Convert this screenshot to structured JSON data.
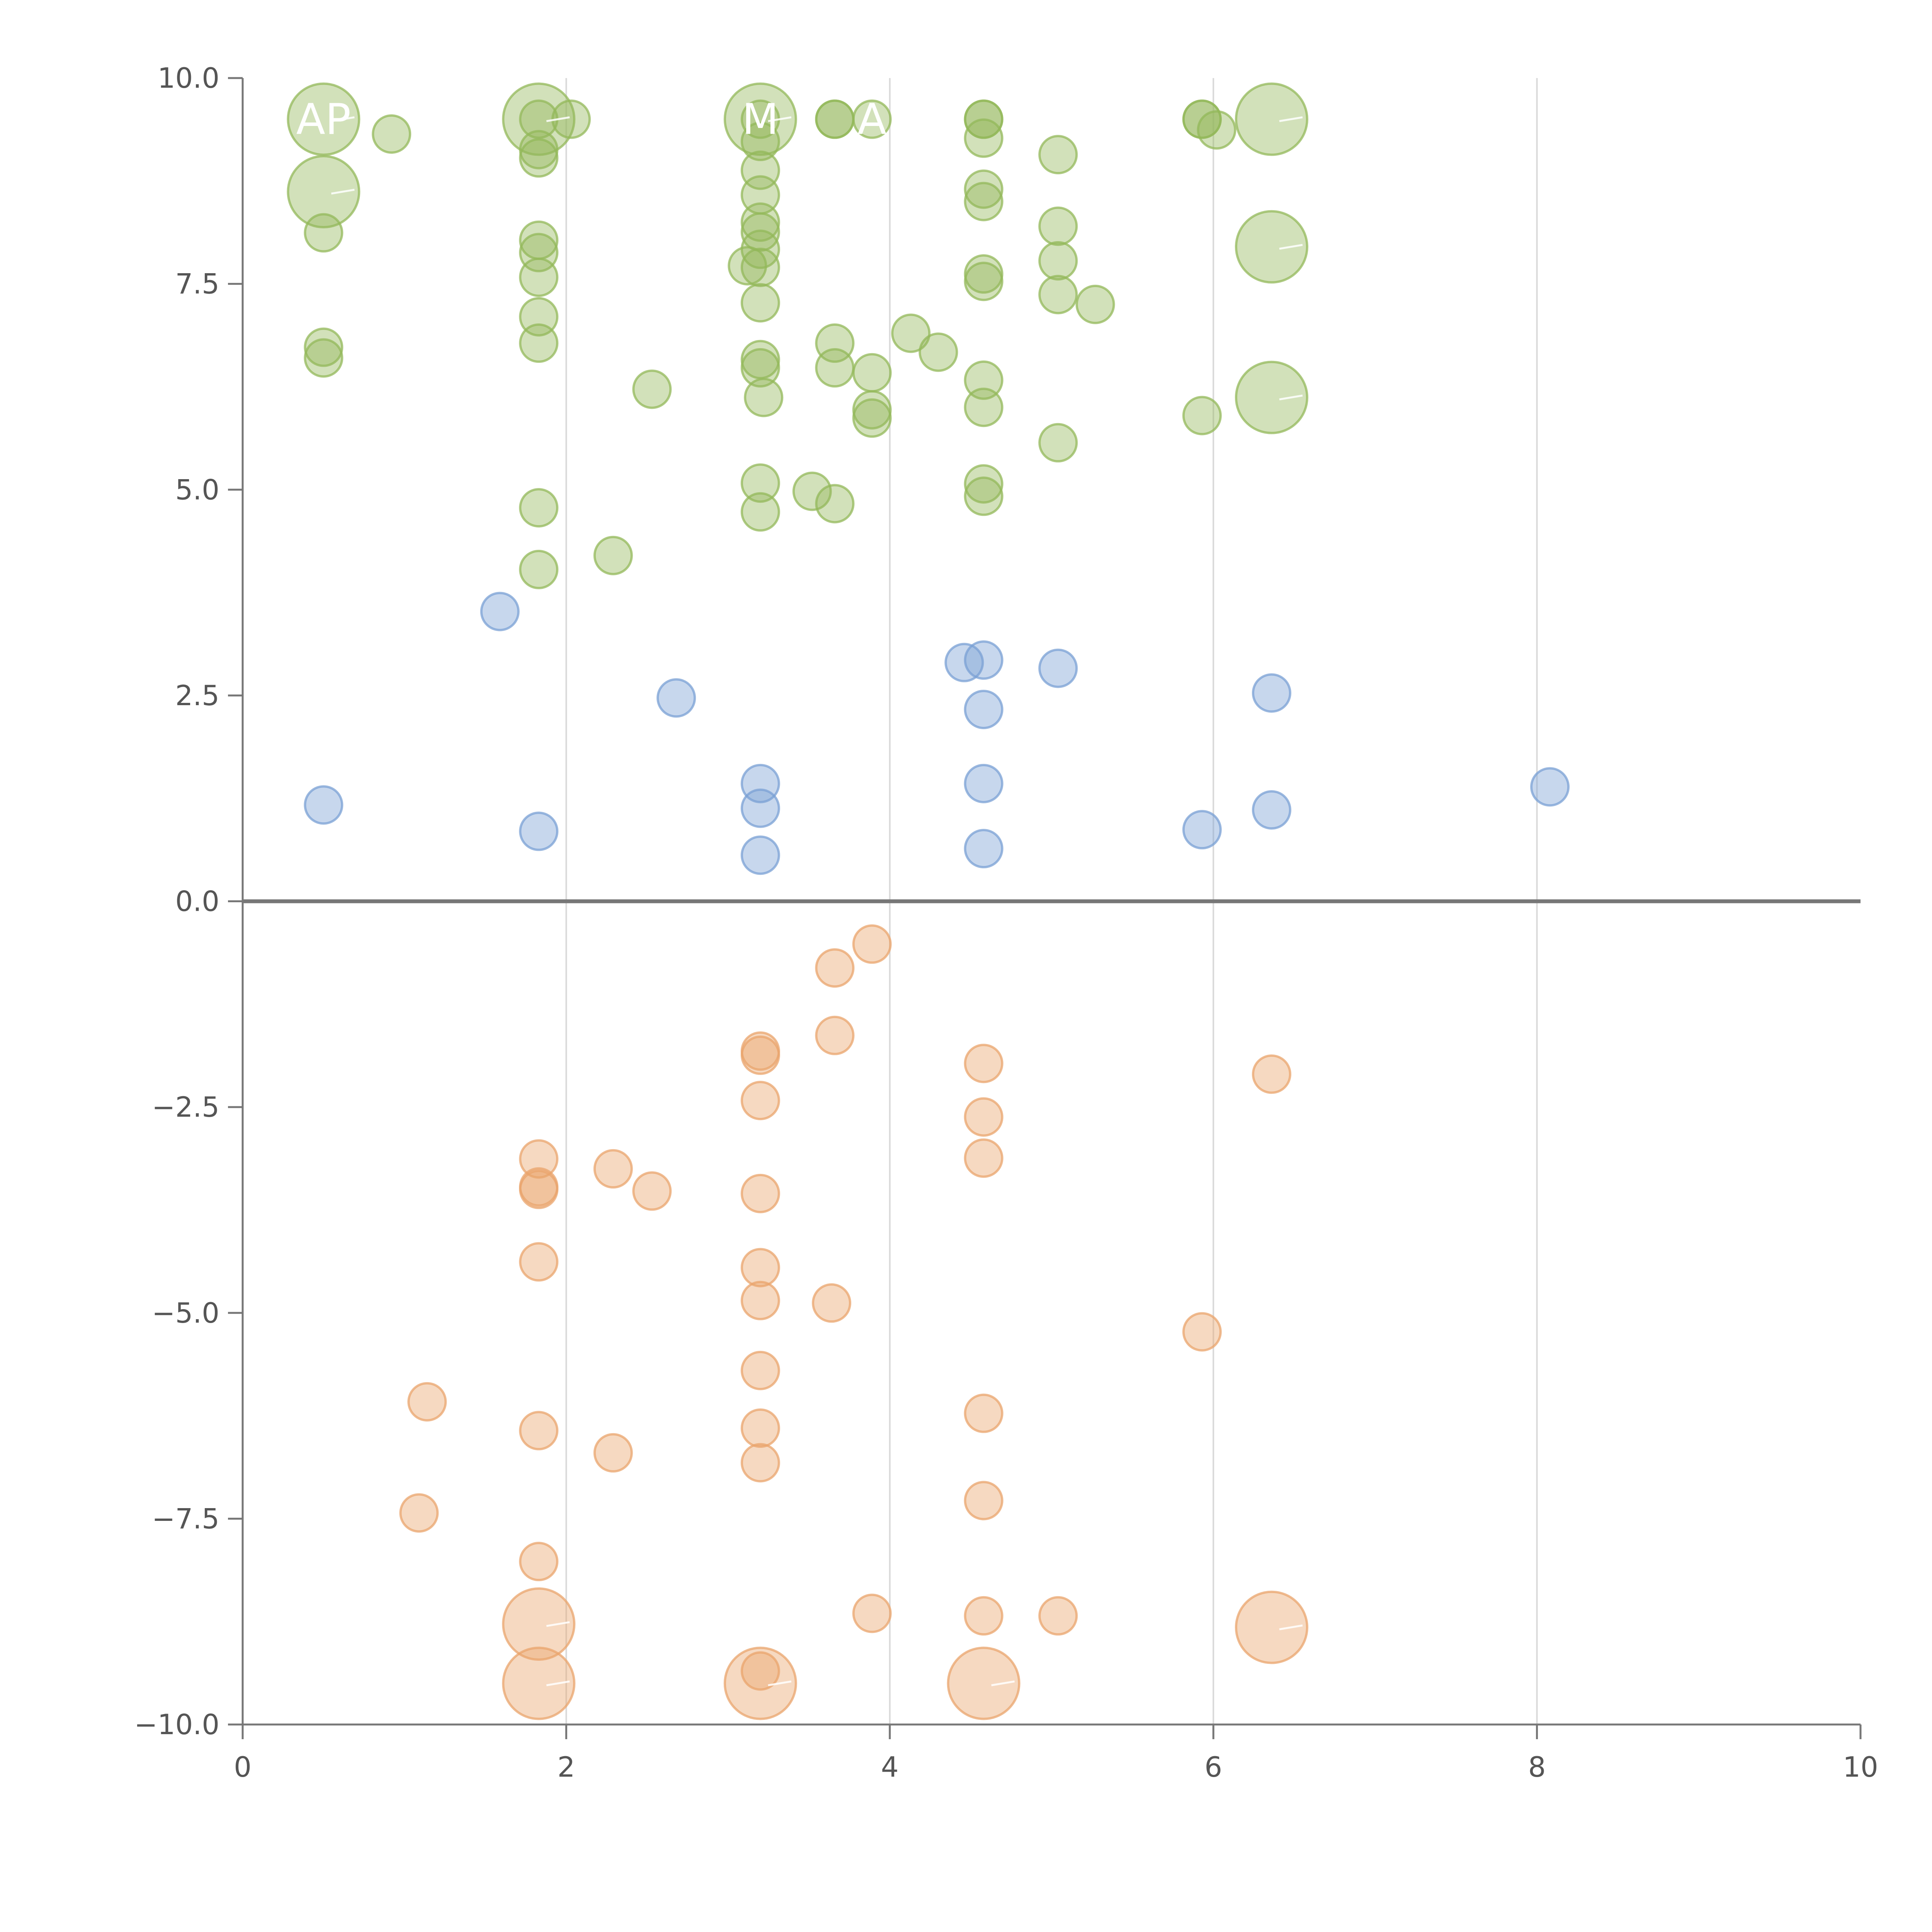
{
  "chart_data": {
    "type": "scatter",
    "title": "",
    "xlabel": "",
    "ylabel": "",
    "xlim": [
      0,
      10
    ],
    "ylim": [
      -10,
      10
    ],
    "x_ticks": [
      0,
      2,
      4,
      6,
      8,
      10
    ],
    "x_tick_labels": [
      "0",
      "2",
      "4",
      "6",
      "8",
      "10"
    ],
    "y_ticks": [
      10,
      7.5,
      5,
      2.5,
      0,
      -2.5,
      -5,
      -7.5,
      -10
    ],
    "y_tick_labels": [
      "10.0",
      "7.5",
      "5.0",
      "2.5",
      "0.0",
      "−2.5",
      "−5.0",
      "−7.5",
      "−10.0"
    ],
    "grid": "vertical",
    "reference_line_y": 0,
    "series": [
      {
        "name": "green",
        "color": "#93b85a",
        "points": [
          [
            0.5,
            9.5,
            2
          ],
          [
            0.92,
            9.32,
            1
          ],
          [
            0.5,
            8.62,
            2
          ],
          [
            0.5,
            8.12,
            1
          ],
          [
            0.5,
            6.73,
            1
          ],
          [
            0.5,
            6.6,
            1
          ],
          [
            1.83,
            9.5,
            2
          ],
          [
            1.83,
            9.5,
            1
          ],
          [
            2.03,
            9.5,
            1
          ],
          [
            1.83,
            9.13,
            1
          ],
          [
            1.83,
            9.03,
            1
          ],
          [
            1.83,
            8.03,
            1
          ],
          [
            1.83,
            7.88,
            1
          ],
          [
            1.83,
            7.58,
            1
          ],
          [
            1.83,
            7.1,
            1
          ],
          [
            1.83,
            6.78,
            1
          ],
          [
            2.53,
            6.22,
            1
          ],
          [
            1.83,
            4.78,
            1
          ],
          [
            1.83,
            4.03,
            1
          ],
          [
            2.29,
            4.2,
            1
          ],
          [
            3.2,
            9.5,
            2
          ],
          [
            3.2,
            9.5,
            1
          ],
          [
            3.66,
            9.5,
            1
          ],
          [
            3.66,
            9.5,
            1
          ],
          [
            3.89,
            9.5,
            1
          ],
          [
            3.2,
            9.23,
            1
          ],
          [
            3.2,
            8.88,
            1
          ],
          [
            3.2,
            8.58,
            1
          ],
          [
            3.2,
            8.25,
            1
          ],
          [
            3.2,
            8.13,
            1
          ],
          [
            3.2,
            7.92,
            1
          ],
          [
            3.2,
            7.7,
            1
          ],
          [
            3.12,
            7.72,
            1
          ],
          [
            3.2,
            7.27,
            1
          ],
          [
            3.2,
            6.58,
            1
          ],
          [
            3.2,
            6.48,
            1
          ],
          [
            3.22,
            6.12,
            1
          ],
          [
            3.2,
            5.08,
            1
          ],
          [
            3.2,
            4.73,
            1
          ],
          [
            3.52,
            4.98,
            1
          ],
          [
            3.66,
            4.83,
            1
          ],
          [
            3.66,
            6.78,
            1
          ],
          [
            3.66,
            6.48,
            1
          ],
          [
            3.89,
            6.42,
            1
          ],
          [
            3.89,
            5.97,
            1
          ],
          [
            3.89,
            5.87,
            1
          ],
          [
            4.13,
            6.9,
            1
          ],
          [
            4.3,
            6.67,
            1
          ],
          [
            4.58,
            9.5,
            1
          ],
          [
            4.58,
            9.5,
            1
          ],
          [
            4.58,
            9.27,
            1
          ],
          [
            4.58,
            8.65,
            1
          ],
          [
            4.58,
            8.5,
            1
          ],
          [
            4.58,
            7.62,
            1
          ],
          [
            4.58,
            7.53,
            1
          ],
          [
            4.58,
            6.33,
            1
          ],
          [
            4.58,
            6.0,
            1
          ],
          [
            4.58,
            5.07,
            1
          ],
          [
            4.58,
            4.92,
            1
          ],
          [
            5.04,
            9.07,
            1
          ],
          [
            5.04,
            8.2,
            1
          ],
          [
            5.04,
            7.78,
            1
          ],
          [
            5.04,
            7.37,
            1
          ],
          [
            5.04,
            5.57,
            1
          ],
          [
            5.27,
            7.25,
            1
          ],
          [
            5.93,
            9.5,
            1
          ],
          [
            5.93,
            9.5,
            1
          ],
          [
            6.02,
            9.37,
            1
          ],
          [
            5.93,
            5.9,
            1
          ],
          [
            6.36,
            9.5,
            2
          ],
          [
            6.36,
            7.95,
            2
          ],
          [
            6.36,
            6.12,
            2
          ]
        ]
      },
      {
        "name": "blue",
        "color": "#7aa0d4",
        "points": [
          [
            1.59,
            3.52,
            1
          ],
          [
            2.68,
            2.47,
            1
          ],
          [
            0.5,
            1.17,
            1
          ],
          [
            1.83,
            0.85,
            1
          ],
          [
            3.2,
            1.43,
            1
          ],
          [
            3.2,
            1.13,
            1
          ],
          [
            3.2,
            0.56,
            1
          ],
          [
            4.46,
            2.9,
            1
          ],
          [
            4.58,
            2.93,
            1
          ],
          [
            4.58,
            2.33,
            1
          ],
          [
            4.58,
            1.43,
            1
          ],
          [
            4.58,
            0.64,
            1
          ],
          [
            5.04,
            2.83,
            1
          ],
          [
            6.36,
            2.53,
            1
          ],
          [
            6.36,
            1.11,
            1
          ],
          [
            5.93,
            0.87,
            1
          ],
          [
            8.08,
            1.39,
            1
          ]
        ]
      },
      {
        "name": "orange",
        "color": "#e9a46c",
        "points": [
          [
            3.89,
            -0.52,
            1
          ],
          [
            3.66,
            -0.81,
            1
          ],
          [
            3.66,
            -1.63,
            1
          ],
          [
            3.2,
            -1.82,
            1
          ],
          [
            3.2,
            -1.87,
            1
          ],
          [
            3.2,
            -2.42,
            1
          ],
          [
            4.58,
            -1.97,
            1
          ],
          [
            4.58,
            -2.62,
            1
          ],
          [
            4.58,
            -3.12,
            1
          ],
          [
            6.36,
            -2.1,
            1
          ],
          [
            1.83,
            -3.13,
            1
          ],
          [
            1.83,
            -3.47,
            1
          ],
          [
            1.83,
            -3.5,
            1
          ],
          [
            2.29,
            -3.25,
            1
          ],
          [
            2.53,
            -3.52,
            1
          ],
          [
            3.2,
            -3.55,
            1
          ],
          [
            1.83,
            -4.38,
            1
          ],
          [
            3.2,
            -4.45,
            1
          ],
          [
            3.2,
            -4.85,
            1
          ],
          [
            3.64,
            -4.88,
            1
          ],
          [
            5.93,
            -5.23,
            1
          ],
          [
            1.14,
            -6.08,
            1
          ],
          [
            1.83,
            -6.43,
            1
          ],
          [
            2.29,
            -6.7,
            1
          ],
          [
            3.2,
            -5.7,
            1
          ],
          [
            3.2,
            -6.4,
            1
          ],
          [
            3.2,
            -6.82,
            1
          ],
          [
            4.58,
            -6.22,
            1
          ],
          [
            1.09,
            -7.43,
            1
          ],
          [
            4.58,
            -7.28,
            1
          ],
          [
            1.83,
            -8.02,
            1
          ],
          [
            3.89,
            -8.65,
            1
          ],
          [
            4.58,
            -8.68,
            1
          ],
          [
            5.04,
            -8.68,
            1
          ],
          [
            1.83,
            -8.78,
            2
          ],
          [
            6.36,
            -8.82,
            2
          ],
          [
            1.83,
            -9.5,
            2
          ],
          [
            3.2,
            -9.5,
            2
          ],
          [
            3.2,
            -9.35,
            1
          ],
          [
            4.58,
            -9.5,
            2
          ]
        ]
      }
    ],
    "point_labels": [
      {
        "text": "AP",
        "x": 0.5,
        "y": 9.5
      },
      {
        "text": "M",
        "x": 3.2,
        "y": 9.5
      },
      {
        "text": "A",
        "x": 3.89,
        "y": 9.5
      }
    ]
  }
}
